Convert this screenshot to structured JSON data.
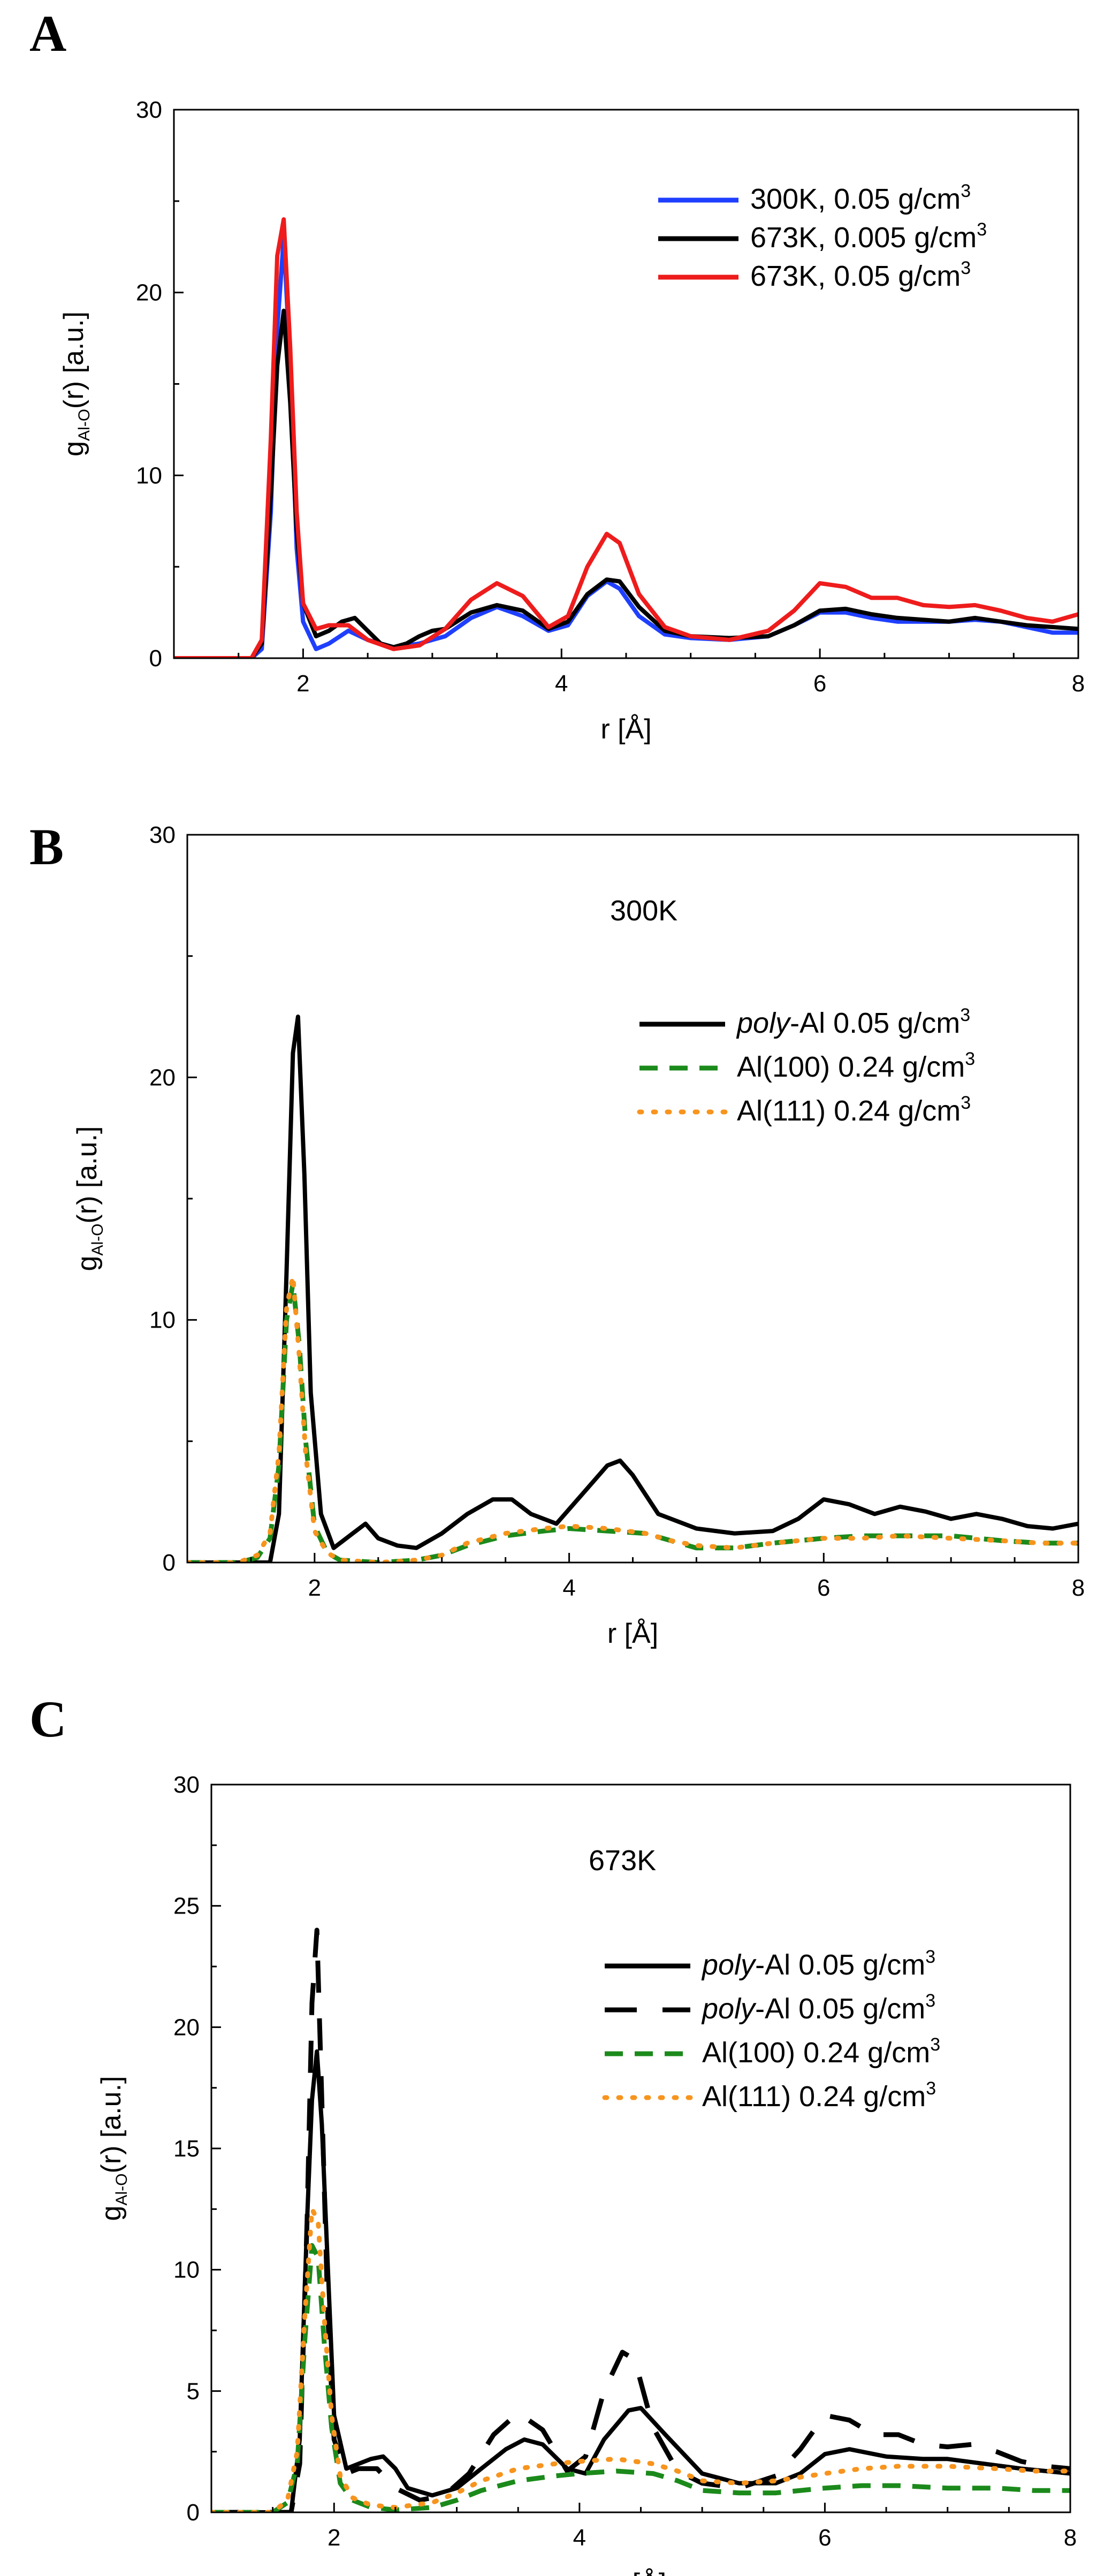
{
  "chart_data": [
    {
      "type": "line",
      "panel": "A",
      "title": "",
      "xlabel": "r [Å]",
      "ylabel": {
        "base": "g",
        "sub": "Al-O",
        "rest": "(r) [a.u.]"
      },
      "xlim": [
        1,
        8
      ],
      "ylim": [
        0,
        30
      ],
      "xticks": [
        2,
        4,
        6,
        8
      ],
      "yticks": [
        0,
        10,
        20,
        30
      ],
      "legend_position": "top-right",
      "series": [
        {
          "name": "300K, 0.05 g/cm3",
          "label": {
            "text": "300K, 0.05 g/cm",
            "sup": "3"
          },
          "color": "#1f3fff",
          "dash": "solid",
          "x": [
            1.0,
            1.6,
            1.68,
            1.75,
            1.8,
            1.85,
            1.9,
            1.95,
            2.0,
            2.1,
            2.2,
            2.35,
            2.5,
            2.7,
            2.9,
            3.1,
            3.3,
            3.5,
            3.7,
            3.9,
            4.05,
            4.2,
            4.35,
            4.45,
            4.6,
            4.8,
            5.0,
            5.3,
            5.6,
            5.8,
            6.0,
            6.2,
            6.4,
            6.6,
            6.8,
            7.0,
            7.2,
            7.4,
            7.6,
            7.8,
            8.0
          ],
          "y": [
            0,
            0,
            0.5,
            8,
            18,
            23,
            16,
            6,
            2,
            0.5,
            0.8,
            1.5,
            1.0,
            0.6,
            0.8,
            1.2,
            2.2,
            2.8,
            2.3,
            1.5,
            1.8,
            3.4,
            4.2,
            3.8,
            2.3,
            1.3,
            1.1,
            1.0,
            1.2,
            1.8,
            2.5,
            2.5,
            2.2,
            2.0,
            2.0,
            2.0,
            2.1,
            2.0,
            1.7,
            1.4,
            1.4
          ]
        },
        {
          "name": "673K, 0.005 g/cm3",
          "label": {
            "text": "673K, 0.005 g/cm",
            "sup": "3"
          },
          "color": "#000000",
          "dash": "solid",
          "x": [
            1.0,
            1.6,
            1.68,
            1.75,
            1.8,
            1.85,
            1.9,
            1.95,
            2.0,
            2.1,
            2.2,
            2.3,
            2.4,
            2.5,
            2.6,
            2.7,
            2.8,
            2.9,
            3.0,
            3.1,
            3.3,
            3.5,
            3.7,
            3.9,
            4.05,
            4.2,
            4.35,
            4.45,
            4.6,
            4.8,
            5.0,
            5.3,
            5.6,
            5.8,
            6.0,
            6.2,
            6.4,
            6.6,
            6.8,
            7.0,
            7.2,
            7.4,
            7.6,
            7.8,
            8.0
          ],
          "y": [
            0,
            0,
            0.8,
            9,
            16,
            19,
            14,
            7,
            3,
            1.2,
            1.5,
            2.0,
            2.2,
            1.5,
            0.8,
            0.6,
            0.8,
            1.2,
            1.5,
            1.6,
            2.5,
            2.9,
            2.6,
            1.6,
            2.0,
            3.5,
            4.3,
            4.2,
            2.8,
            1.5,
            1.2,
            1.1,
            1.2,
            1.8,
            2.6,
            2.7,
            2.4,
            2.2,
            2.1,
            2.0,
            2.2,
            2.0,
            1.8,
            1.7,
            1.6
          ]
        },
        {
          "name": "673K, 0.05 g/cm3",
          "label": {
            "text": "673K, 0.05 g/cm",
            "sup": "3"
          },
          "color": "#ee1c1c",
          "dash": "solid",
          "x": [
            1.0,
            1.6,
            1.68,
            1.75,
            1.8,
            1.85,
            1.9,
            1.95,
            2.0,
            2.1,
            2.2,
            2.35,
            2.5,
            2.7,
            2.9,
            3.1,
            3.3,
            3.5,
            3.7,
            3.9,
            4.05,
            4.2,
            4.35,
            4.45,
            4.6,
            4.8,
            5.0,
            5.3,
            5.6,
            5.8,
            6.0,
            6.2,
            6.4,
            6.6,
            6.8,
            7.0,
            7.2,
            7.4,
            7.6,
            7.8,
            8.0
          ],
          "y": [
            0,
            0,
            1.0,
            12,
            22,
            24,
            17,
            8,
            3,
            1.6,
            1.8,
            1.8,
            1.0,
            0.5,
            0.7,
            1.6,
            3.2,
            4.1,
            3.4,
            1.7,
            2.3,
            5.0,
            6.8,
            6.3,
            3.5,
            1.7,
            1.2,
            1.0,
            1.5,
            2.6,
            4.1,
            3.9,
            3.3,
            3.3,
            2.9,
            2.8,
            2.9,
            2.6,
            2.2,
            2.0,
            2.4
          ]
        }
      ]
    },
    {
      "type": "line",
      "panel": "B",
      "title": "",
      "annotation": "300K",
      "xlabel": "r [Å]",
      "ylabel": {
        "base": "g",
        "sub": "Al-O",
        "rest": "(r) [a.u.]"
      },
      "xlim": [
        1,
        8
      ],
      "ylim": [
        0,
        30
      ],
      "xticks": [
        2,
        4,
        6,
        8
      ],
      "yticks": [
        0,
        10,
        20,
        30
      ],
      "legend_position": "right",
      "series": [
        {
          "name": "poly-Al 0.05 g/cm3",
          "label": {
            "italic": "poly",
            "text": "-Al 0.05 g/cm",
            "sup": "3"
          },
          "color": "#000000",
          "dash": "solid",
          "x": [
            1.0,
            1.65,
            1.72,
            1.78,
            1.83,
            1.87,
            1.92,
            1.97,
            2.05,
            2.15,
            2.3,
            2.4,
            2.5,
            2.65,
            2.8,
            3.0,
            3.2,
            3.4,
            3.55,
            3.7,
            3.9,
            4.1,
            4.3,
            4.4,
            4.5,
            4.7,
            5.0,
            5.3,
            5.6,
            5.8,
            6.0,
            6.2,
            6.4,
            6.6,
            6.8,
            7.0,
            7.2,
            7.4,
            7.6,
            7.8,
            8.0
          ],
          "y": [
            0,
            0,
            2,
            12,
            21,
            22.5,
            16,
            7,
            2,
            0.6,
            1.2,
            1.6,
            1.0,
            0.7,
            0.6,
            1.2,
            2.0,
            2.6,
            2.6,
            2.0,
            1.6,
            2.8,
            4.0,
            4.2,
            3.6,
            2.0,
            1.4,
            1.2,
            1.3,
            1.8,
            2.6,
            2.4,
            2.0,
            2.3,
            2.1,
            1.8,
            2.0,
            1.8,
            1.5,
            1.4,
            1.6
          ]
        },
        {
          "name": "Al(100) 0.24 g/cm3",
          "label": {
            "italic": "",
            "text": "Al(100) 0.24 g/cm",
            "sup": "3"
          },
          "color": "#1b8a1b",
          "dash": "dash",
          "x": [
            1.0,
            1.4,
            1.55,
            1.65,
            1.72,
            1.78,
            1.83,
            1.88,
            1.93,
            2.0,
            2.1,
            2.2,
            2.5,
            2.8,
            3.0,
            3.2,
            3.5,
            3.8,
            4.0,
            4.3,
            4.6,
            4.8,
            5.0,
            5.3,
            5.6,
            6.0,
            6.3,
            6.6,
            7.0,
            7.4,
            7.7,
            8.0
          ],
          "y": [
            0,
            0,
            0.2,
            1.0,
            4.0,
            10.0,
            11.5,
            9.0,
            5.0,
            1.5,
            0.4,
            0.1,
            0.0,
            0.1,
            0.3,
            0.7,
            1.1,
            1.3,
            1.4,
            1.3,
            1.2,
            0.9,
            0.6,
            0.6,
            0.8,
            1.0,
            1.1,
            1.1,
            1.1,
            0.9,
            0.8,
            0.8
          ]
        },
        {
          "name": "Al(111) 0.24 g/cm3",
          "label": {
            "italic": "",
            "text": "Al(111) 0.24 g/cm",
            "sup": "3"
          },
          "color": "#f7941d",
          "dash": "dot",
          "x": [
            1.0,
            1.4,
            1.55,
            1.65,
            1.72,
            1.78,
            1.83,
            1.88,
            1.93,
            2.0,
            2.1,
            2.2,
            2.5,
            2.8,
            3.0,
            3.2,
            3.5,
            3.8,
            4.0,
            4.3,
            4.6,
            4.8,
            5.0,
            5.3,
            5.6,
            6.0,
            6.3,
            6.6,
            7.0,
            7.4,
            7.7,
            8.0
          ],
          "y": [
            0,
            0,
            0.3,
            1.2,
            4.5,
            10.5,
            11.8,
            8.5,
            4.5,
            1.3,
            0.4,
            0.1,
            0.0,
            0.1,
            0.3,
            0.8,
            1.2,
            1.4,
            1.5,
            1.4,
            1.2,
            0.9,
            0.7,
            0.6,
            0.8,
            1.0,
            1.0,
            1.1,
            1.0,
            0.9,
            0.8,
            0.8
          ]
        }
      ]
    },
    {
      "type": "line",
      "panel": "C",
      "title": "",
      "annotation": "673K",
      "xlabel": "r [Å]",
      "ylabel": {
        "base": "g",
        "sub": "Al-O",
        "rest": "(r) [a.u.]"
      },
      "xlim": [
        1,
        8
      ],
      "ylim": [
        0,
        30
      ],
      "xticks": [
        2,
        4,
        6,
        8
      ],
      "yticks": [
        0,
        5,
        10,
        15,
        20,
        25,
        30
      ],
      "legend_position": "right",
      "series": [
        {
          "name": "poly-Al 0.05 g/cm3",
          "label": {
            "italic": "poly",
            "text": "-Al 0.05 g/cm",
            "sup": "3"
          },
          "color": "#000000",
          "dash": "solid",
          "x": [
            1.0,
            1.65,
            1.72,
            1.78,
            1.82,
            1.86,
            1.9,
            1.95,
            2.0,
            2.1,
            2.2,
            2.3,
            2.4,
            2.5,
            2.6,
            2.8,
            3.0,
            3.2,
            3.4,
            3.55,
            3.7,
            3.9,
            4.05,
            4.2,
            4.4,
            4.5,
            4.7,
            5.0,
            5.3,
            5.6,
            5.8,
            6.0,
            6.2,
            6.5,
            6.8,
            7.0,
            7.3,
            7.6,
            7.8,
            8.0
          ],
          "y": [
            0,
            0,
            3,
            12,
            17,
            19,
            16,
            10,
            4,
            1.8,
            2.0,
            2.2,
            2.3,
            1.8,
            1.0,
            0.7,
            1.0,
            1.8,
            2.6,
            3.0,
            2.8,
            1.8,
            1.6,
            3.0,
            4.2,
            4.3,
            3.2,
            1.6,
            1.2,
            1.2,
            1.6,
            2.4,
            2.6,
            2.3,
            2.2,
            2.2,
            2.0,
            1.8,
            1.7,
            1.6
          ]
        },
        {
          "name": "poly-Al 0.05 g/cm3",
          "label": {
            "italic": "poly",
            "text": "-Al 0.05 g/cm",
            "sup": "3"
          },
          "color": "#000000",
          "dash": "longdash",
          "x": [
            1.0,
            1.65,
            1.72,
            1.78,
            1.82,
            1.86,
            1.9,
            1.95,
            2.0,
            2.1,
            2.2,
            2.35,
            2.5,
            2.7,
            2.9,
            3.1,
            3.3,
            3.5,
            3.7,
            3.9,
            4.05,
            4.2,
            4.35,
            4.45,
            4.6,
            4.8,
            5.0,
            5.3,
            5.6,
            5.8,
            6.0,
            6.2,
            6.4,
            6.6,
            6.8,
            7.0,
            7.2,
            7.4,
            7.6,
            7.8,
            8.0
          ],
          "y": [
            0,
            0,
            2,
            12,
            21,
            24,
            17,
            8,
            3,
            1.6,
            1.8,
            1.8,
            1.0,
            0.5,
            0.7,
            1.6,
            3.2,
            4.1,
            3.4,
            1.7,
            2.3,
            5.0,
            6.6,
            6.3,
            3.5,
            1.7,
            1.2,
            1.0,
            1.5,
            2.6,
            4.0,
            3.8,
            3.2,
            3.2,
            2.8,
            2.7,
            2.8,
            2.5,
            2.1,
            1.9,
            1.8
          ]
        },
        {
          "name": "Al(100) 0.24 g/cm3",
          "label": {
            "italic": "",
            "text": "Al(100) 0.24 g/cm",
            "sup": "3"
          },
          "color": "#1b8a1b",
          "dash": "dash",
          "x": [
            1.0,
            1.5,
            1.62,
            1.7,
            1.76,
            1.82,
            1.87,
            1.92,
            1.98,
            2.05,
            2.15,
            2.3,
            2.5,
            2.8,
            3.0,
            3.2,
            3.5,
            3.8,
            4.0,
            4.3,
            4.6,
            4.8,
            5.0,
            5.3,
            5.6,
            6.0,
            6.3,
            6.6,
            7.0,
            7.4,
            7.7,
            8.0
          ],
          "y": [
            0,
            0,
            0.4,
            2.0,
            7.0,
            11.0,
            10.5,
            7.0,
            3.5,
            1.2,
            0.5,
            0.2,
            0.1,
            0.2,
            0.5,
            0.9,
            1.3,
            1.5,
            1.6,
            1.7,
            1.6,
            1.3,
            0.9,
            0.8,
            0.8,
            1.0,
            1.1,
            1.1,
            1.0,
            1.0,
            0.9,
            0.9
          ]
        },
        {
          "name": "Al(111) 0.24 g/cm3",
          "label": {
            "italic": "",
            "text": "Al(111) 0.24 g/cm",
            "sup": "3"
          },
          "color": "#f7941d",
          "dash": "dot",
          "x": [
            1.0,
            1.5,
            1.62,
            1.7,
            1.76,
            1.82,
            1.87,
            1.92,
            1.98,
            2.05,
            2.15,
            2.3,
            2.5,
            2.8,
            3.0,
            3.2,
            3.5,
            3.8,
            4.0,
            4.3,
            4.6,
            4.8,
            5.0,
            5.3,
            5.6,
            6.0,
            6.3,
            6.6,
            7.0,
            7.4,
            7.7,
            8.0
          ],
          "y": [
            0,
            0,
            0.5,
            2.5,
            8.0,
            12.5,
            12.0,
            8.0,
            4.0,
            1.5,
            0.6,
            0.3,
            0.2,
            0.4,
            0.8,
            1.3,
            1.8,
            2.0,
            2.1,
            2.2,
            2.0,
            1.7,
            1.3,
            1.2,
            1.3,
            1.6,
            1.8,
            1.9,
            1.9,
            1.8,
            1.7,
            1.7
          ]
        }
      ]
    }
  ]
}
